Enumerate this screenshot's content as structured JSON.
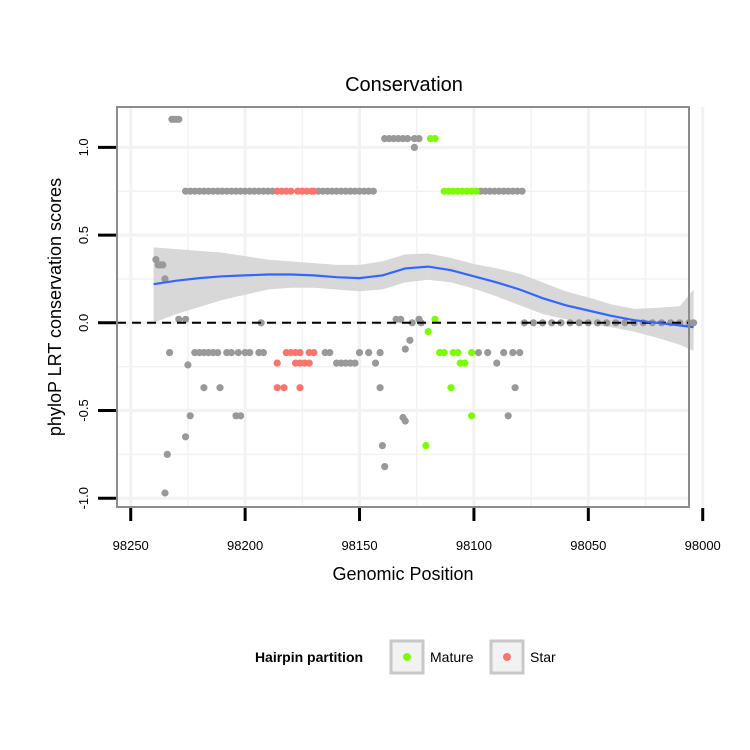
{
  "chart_data": {
    "type": "scatter",
    "title": "Conservation",
    "xlabel": "Genomic Position",
    "ylabel": "phyloP LRT conservation scores",
    "x_reversed": true,
    "xlim": [
      98006,
      98256
    ],
    "ylim": [
      -1.05,
      1.23
    ],
    "x_ticks": [
      98250,
      98200,
      98150,
      98100,
      98050,
      98000
    ],
    "y_ticks": [
      1.0,
      0.5,
      0.0,
      -0.5,
      -1.0
    ],
    "y_tick_labels": [
      "1.0",
      "0.5",
      "0.0",
      "-0.5",
      "-1.0"
    ],
    "reference_line": {
      "y": 0,
      "style": "dashed"
    },
    "colors": {
      "other": "#999999",
      "Mature": "#7cfc00",
      "Star": "#f8766d",
      "smooth": "#3366ff",
      "ribbon": "#d4d4d4",
      "grid": "#f2f2f2",
      "panel_border": "#8c8c8c",
      "dashed": "#000000"
    },
    "legend": {
      "title": "Hairpin partition",
      "position": "bottom",
      "items": [
        {
          "label": "Mature",
          "color": "#7cfc00"
        },
        {
          "label": "Star",
          "color": "#f8766d"
        }
      ]
    },
    "smooth": {
      "x": [
        98240,
        98230,
        98220,
        98210,
        98200,
        98190,
        98180,
        98170,
        98160,
        98150,
        98140,
        98130,
        98120,
        98110,
        98100,
        98090,
        98080,
        98070,
        98060,
        98050,
        98040,
        98030,
        98020,
        98010,
        98004
      ],
      "y": [
        0.22,
        0.24,
        0.255,
        0.265,
        0.27,
        0.275,
        0.275,
        0.27,
        0.26,
        0.255,
        0.27,
        0.31,
        0.32,
        0.3,
        0.265,
        0.23,
        0.19,
        0.14,
        0.1,
        0.07,
        0.04,
        0.015,
        0.0,
        -0.015,
        -0.025
      ],
      "lower": [
        0.0,
        0.05,
        0.09,
        0.13,
        0.16,
        0.19,
        0.2,
        0.2,
        0.19,
        0.18,
        0.19,
        0.23,
        0.245,
        0.23,
        0.195,
        0.15,
        0.1,
        0.05,
        0.02,
        -0.005,
        -0.025,
        -0.05,
        -0.085,
        -0.125,
        -0.16
      ],
      "upper": [
        0.43,
        0.42,
        0.41,
        0.4,
        0.38,
        0.36,
        0.35,
        0.34,
        0.33,
        0.33,
        0.35,
        0.39,
        0.395,
        0.37,
        0.335,
        0.31,
        0.28,
        0.23,
        0.18,
        0.145,
        0.105,
        0.08,
        0.085,
        0.095,
        0.19
      ]
    },
    "series": [
      {
        "name": "Other",
        "color": "#999999",
        "points": [
          [
            98239,
            0.36
          ],
          [
            98238,
            0.33
          ],
          [
            98237,
            0.33
          ],
          [
            98236,
            0.33
          ],
          [
            98235,
            0.25
          ],
          [
            98232,
            1.16
          ],
          [
            98231,
            1.16
          ],
          [
            98230,
            1.16
          ],
          [
            98229,
            1.16
          ],
          [
            98226,
            0.02
          ],
          [
            98229,
            0.02
          ],
          [
            98233,
            -0.17
          ],
          [
            98234,
            -0.75
          ],
          [
            98235,
            -0.97
          ],
          [
            98226,
            -0.65
          ],
          [
            98224,
            -0.53
          ],
          [
            98225,
            -0.24
          ],
          [
            98226,
            0.75
          ],
          [
            98224,
            0.75
          ],
          [
            98222,
            0.75
          ],
          [
            98220,
            0.75
          ],
          [
            98218,
            0.75
          ],
          [
            98216,
            0.75
          ],
          [
            98214,
            0.75
          ],
          [
            98212,
            0.75
          ],
          [
            98210,
            0.75
          ],
          [
            98208,
            0.75
          ],
          [
            98206,
            0.75
          ],
          [
            98204,
            0.75
          ],
          [
            98202,
            0.75
          ],
          [
            98200,
            0.75
          ],
          [
            98198,
            0.75
          ],
          [
            98196,
            0.75
          ],
          [
            98194,
            0.75
          ],
          [
            98192,
            0.75
          ],
          [
            98190,
            0.75
          ],
          [
            98188,
            0.75
          ],
          [
            98168,
            0.75
          ],
          [
            98166,
            0.75
          ],
          [
            98164,
            0.75
          ],
          [
            98162,
            0.75
          ],
          [
            98160,
            0.75
          ],
          [
            98158,
            0.75
          ],
          [
            98156,
            0.75
          ],
          [
            98154,
            0.75
          ],
          [
            98152,
            0.75
          ],
          [
            98150,
            0.75
          ],
          [
            98148,
            0.75
          ],
          [
            98146,
            0.75
          ],
          [
            98144,
            0.75
          ],
          [
            98222,
            -0.17
          ],
          [
            98220,
            -0.17
          ],
          [
            98218,
            -0.17
          ],
          [
            98216,
            -0.17
          ],
          [
            98214,
            -0.17
          ],
          [
            98212,
            -0.17
          ],
          [
            98208,
            -0.17
          ],
          [
            98206,
            -0.17
          ],
          [
            98203,
            -0.17
          ],
          [
            98194,
            -0.17
          ],
          [
            98192,
            -0.17
          ],
          [
            98218,
            -0.37
          ],
          [
            98211,
            -0.37
          ],
          [
            98204,
            -0.53
          ],
          [
            98202,
            -0.53
          ],
          [
            98200,
            -0.17
          ],
          [
            98198,
            -0.17
          ],
          [
            98193,
            0.0
          ],
          [
            98165,
            -0.17
          ],
          [
            98163,
            -0.17
          ],
          [
            98160,
            -0.23
          ],
          [
            98158,
            -0.23
          ],
          [
            98156,
            -0.23
          ],
          [
            98154,
            -0.23
          ],
          [
            98152,
            -0.23
          ],
          [
            98150,
            -0.17
          ],
          [
            98146,
            -0.17
          ],
          [
            98143,
            -0.23
          ],
          [
            98141,
            -0.17
          ],
          [
            98141,
            -0.37
          ],
          [
            98140,
            -0.7
          ],
          [
            98139,
            -0.82
          ],
          [
            98139,
            1.05
          ],
          [
            98137,
            1.05
          ],
          [
            98135,
            1.05
          ],
          [
            98133,
            1.05
          ],
          [
            98131,
            1.05
          ],
          [
            98129,
            1.05
          ],
          [
            98126,
            1.05
          ],
          [
            98124,
            1.05
          ],
          [
            98126,
            1.0
          ],
          [
            98134,
            0.02
          ],
          [
            98132,
            0.02
          ],
          [
            98127,
            0.0
          ],
          [
            98128,
            -0.1
          ],
          [
            98130,
            -0.15
          ],
          [
            98131,
            -0.54
          ],
          [
            98130,
            -0.56
          ],
          [
            98124,
            0.02
          ],
          [
            98123,
            0.0
          ],
          [
            98097,
            0.75
          ],
          [
            98095,
            0.75
          ],
          [
            98093,
            0.75
          ],
          [
            98091,
            0.75
          ],
          [
            98089,
            0.75
          ],
          [
            98087,
            0.75
          ],
          [
            98085,
            0.75
          ],
          [
            98083,
            0.75
          ],
          [
            98081,
            0.75
          ],
          [
            98079,
            0.75
          ],
          [
            98098,
            -0.17
          ],
          [
            98094,
            -0.17
          ],
          [
            98090,
            -0.23
          ],
          [
            98087,
            -0.17
          ],
          [
            98083,
            -0.17
          ],
          [
            98080,
            -0.17
          ],
          [
            98082,
            -0.37
          ],
          [
            98085,
            -0.53
          ],
          [
            98078,
            0.0
          ],
          [
            98074,
            0.0
          ],
          [
            98070,
            0.0
          ],
          [
            98066,
            0.0
          ],
          [
            98062,
            0.0
          ],
          [
            98058,
            0.0
          ],
          [
            98054,
            0.0
          ],
          [
            98050,
            0.0
          ],
          [
            98046,
            0.0
          ],
          [
            98042,
            0.0
          ],
          [
            98038,
            0.0
          ],
          [
            98034,
            0.0
          ],
          [
            98030,
            0.0
          ],
          [
            98026,
            0.0
          ],
          [
            98022,
            0.0
          ],
          [
            98018,
            0.0
          ],
          [
            98014,
            0.0
          ],
          [
            98010,
            0.0
          ],
          [
            98006,
            0.0
          ],
          [
            98004,
            0.0
          ]
        ]
      },
      {
        "name": "Mature",
        "color": "#7cfc00",
        "points": [
          [
            98119,
            1.05
          ],
          [
            98117,
            1.05
          ],
          [
            98113,
            0.75
          ],
          [
            98111,
            0.75
          ],
          [
            98109,
            0.75
          ],
          [
            98107,
            0.75
          ],
          [
            98105,
            0.75
          ],
          [
            98103,
            0.75
          ],
          [
            98101,
            0.75
          ],
          [
            98099,
            0.75
          ],
          [
            98117,
            0.02
          ],
          [
            98120,
            -0.05
          ],
          [
            98115,
            -0.17
          ],
          [
            98113,
            -0.17
          ],
          [
            98109,
            -0.17
          ],
          [
            98107,
            -0.17
          ],
          [
            98101,
            -0.17
          ],
          [
            98106,
            -0.23
          ],
          [
            98104,
            -0.23
          ],
          [
            98110,
            -0.37
          ],
          [
            98101,
            -0.53
          ],
          [
            98121,
            -0.7
          ]
        ]
      },
      {
        "name": "Star",
        "color": "#f8766d",
        "points": [
          [
            98186,
            0.75
          ],
          [
            98184,
            0.75
          ],
          [
            98182,
            0.75
          ],
          [
            98180,
            0.75
          ],
          [
            98177,
            0.75
          ],
          [
            98175,
            0.75
          ],
          [
            98173,
            0.75
          ],
          [
            98171,
            0.75
          ],
          [
            98170,
            0.75
          ],
          [
            98182,
            -0.17
          ],
          [
            98180,
            -0.17
          ],
          [
            98178,
            -0.17
          ],
          [
            98176,
            -0.17
          ],
          [
            98172,
            -0.17
          ],
          [
            98170,
            -0.17
          ],
          [
            98186,
            -0.23
          ],
          [
            98178,
            -0.23
          ],
          [
            98176,
            -0.23
          ],
          [
            98174,
            -0.23
          ],
          [
            98172,
            -0.23
          ],
          [
            98186,
            -0.37
          ],
          [
            98183,
            -0.37
          ],
          [
            98176,
            -0.37
          ]
        ]
      }
    ]
  }
}
